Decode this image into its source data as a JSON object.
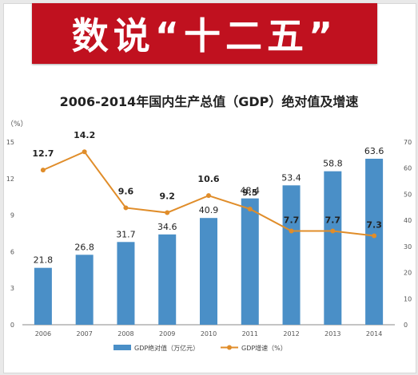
{
  "banner": {
    "text": "数说“十二五”"
  },
  "chart_data": {
    "type": "bar",
    "title": "2006-2014年国内生产总值（GDP）绝对值及增速",
    "categories": [
      "2006",
      "2007",
      "2008",
      "2009",
      "2010",
      "2011",
      "2012",
      "2013",
      "2014"
    ],
    "series": [
      {
        "name": "GDP绝对值（万亿元）",
        "type": "bar",
        "axis": "right",
        "color": "#4a8fc7",
        "values": [
          21.8,
          26.8,
          31.7,
          34.6,
          40.9,
          48.4,
          53.4,
          58.8,
          63.6
        ]
      },
      {
        "name": "GDP增速（%）",
        "type": "line",
        "axis": "left",
        "color": "#e08d2a",
        "values": [
          12.7,
          14.2,
          9.6,
          9.2,
          10.6,
          9.5,
          7.7,
          7.7,
          7.3
        ]
      }
    ],
    "ylabel_left": "（%）",
    "y_left": {
      "min": 0,
      "max": 15,
      "ticks": [
        "0",
        "3",
        "6",
        "9",
        "12",
        "15"
      ]
    },
    "y_right": {
      "min": 0,
      "max": 70,
      "ticks": [
        "0",
        "10",
        "20",
        "30",
        "40",
        "50",
        "60",
        "70"
      ]
    },
    "legend": {
      "position": "bottom",
      "bar_label": "GDP绝对值（万亿元）",
      "line_label": "GDP增速（%）"
    },
    "grid": false
  }
}
